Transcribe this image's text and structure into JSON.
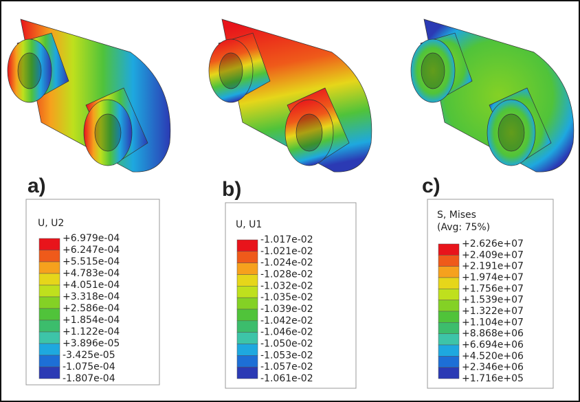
{
  "panels": [
    {
      "label": "a)",
      "legend_title": [
        "U, U2"
      ],
      "levels": [
        "+6.979e-04",
        "+6.247e-04",
        "+5.515e-04",
        "+4.783e-04",
        "+4.051e-04",
        "+3.318e-04",
        "+2.586e-04",
        "+1.854e-04",
        "+1.122e-04",
        "+3.896e-05",
        "-3.425e-05",
        "-1.075e-04",
        "-1.807e-04"
      ]
    },
    {
      "label": "b)",
      "legend_title": [
        "U, U1"
      ],
      "levels": [
        "-1.017e-02",
        "-1.021e-02",
        "-1.024e-02",
        "-1.028e-02",
        "-1.032e-02",
        "-1.035e-02",
        "-1.039e-02",
        "-1.042e-02",
        "-1.046e-02",
        "-1.050e-02",
        "-1.053e-02",
        "-1.057e-02",
        "-1.061e-02"
      ]
    },
    {
      "label": "c)",
      "legend_title": [
        "S, Mises",
        "(Avg: 75%)"
      ],
      "levels": [
        "+2.626e+07",
        "+2.409e+07",
        "+2.191e+07",
        "+1.974e+07",
        "+1.756e+07",
        "+1.539e+07",
        "+1.322e+07",
        "+1.104e+07",
        "+8.868e+06",
        "+6.694e+06",
        "+4.520e+06",
        "+2.346e+06",
        "+1.716e+05"
      ]
    }
  ],
  "colors": [
    "#e8141b",
    "#ef5a1a",
    "#f6a11d",
    "#e6d61a",
    "#bfe01d",
    "#84d125",
    "#50c33a",
    "#3cbd6c",
    "#3dc4a8",
    "#1ea8df",
    "#1d6fd6",
    "#2b3ab4"
  ]
}
